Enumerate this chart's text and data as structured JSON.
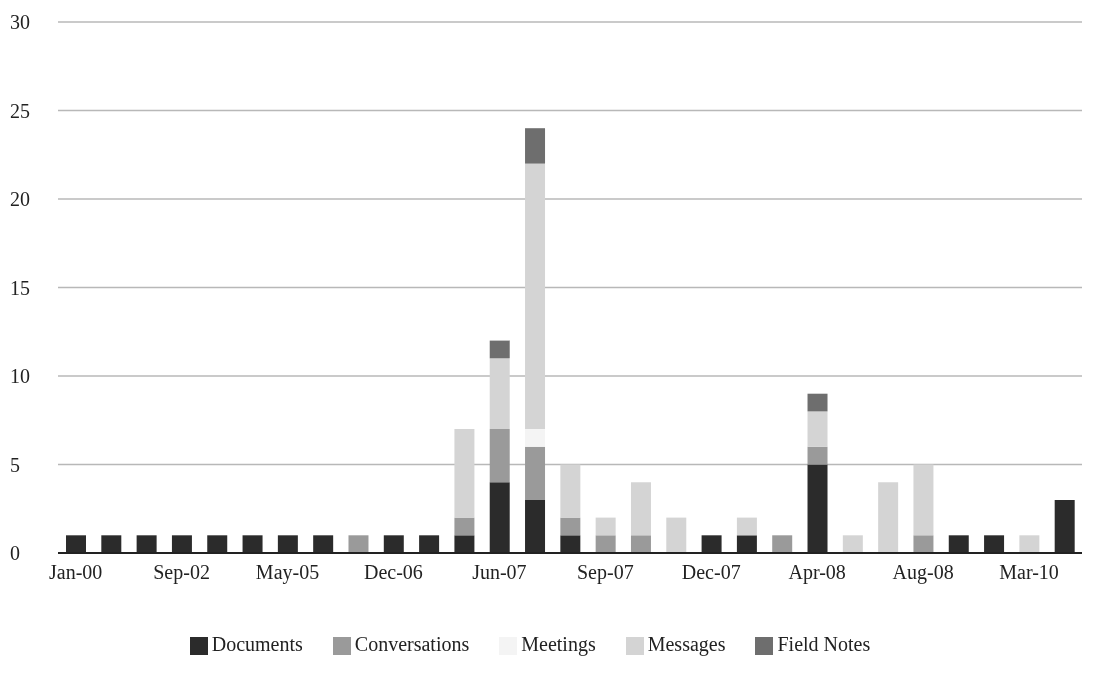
{
  "chart_data": {
    "type": "bar",
    "stacked": true,
    "categories": [
      "Jan-00",
      null,
      null,
      "Sep-02",
      null,
      null,
      "May-05",
      null,
      null,
      "Dec-06",
      null,
      null,
      "Jun-07",
      null,
      null,
      "Sep-07",
      null,
      null,
      "Dec-07",
      null,
      null,
      "Apr-08",
      null,
      null,
      "Aug-08",
      null,
      null,
      "Mar-10",
      null
    ],
    "series": [
      {
        "name": "Documents",
        "color": "#2b2b2b",
        "values": [
          1,
          1,
          1,
          1,
          1,
          1,
          1,
          1,
          0,
          1,
          1,
          1,
          4,
          3,
          1,
          0,
          0,
          0,
          1,
          1,
          0,
          5,
          0,
          0,
          0,
          1,
          1,
          0,
          3
        ]
      },
      {
        "name": "Conversations",
        "color": "#9a9a9a",
        "values": [
          0,
          0,
          0,
          0,
          0,
          0,
          0,
          0,
          1,
          0,
          0,
          1,
          3,
          3,
          1,
          1,
          1,
          0,
          0,
          0,
          1,
          1,
          0,
          0,
          1,
          0,
          0,
          0,
          0
        ]
      },
      {
        "name": "Meetings",
        "color": "#f4f4f4",
        "values": [
          0,
          0,
          0,
          0,
          0,
          0,
          0,
          0,
          0,
          0,
          0,
          0,
          0,
          1,
          0,
          0,
          0,
          0,
          0,
          0,
          0,
          0,
          0,
          0,
          0,
          0,
          0,
          0,
          0
        ]
      },
      {
        "name": "Messages",
        "color": "#d4d4d4",
        "values": [
          0,
          0,
          0,
          0,
          0,
          0,
          0,
          0,
          0,
          0,
          0,
          5,
          4,
          15,
          3,
          1,
          3,
          2,
          0,
          1,
          0,
          2,
          1,
          4,
          4,
          0,
          0,
          1,
          0
        ]
      },
      {
        "name": "Field Notes",
        "color": "#6e6e6e",
        "values": [
          0,
          0,
          0,
          0,
          0,
          0,
          0,
          0,
          0,
          0,
          0,
          0,
          1,
          2,
          0,
          0,
          0,
          0,
          0,
          0,
          0,
          1,
          0,
          0,
          0,
          0,
          0,
          0,
          0
        ]
      }
    ],
    "ylim": [
      0,
      30
    ],
    "yticks": [
      0,
      5,
      10,
      15,
      20,
      25,
      30
    ],
    "grid": "y",
    "legend": "bottom"
  }
}
